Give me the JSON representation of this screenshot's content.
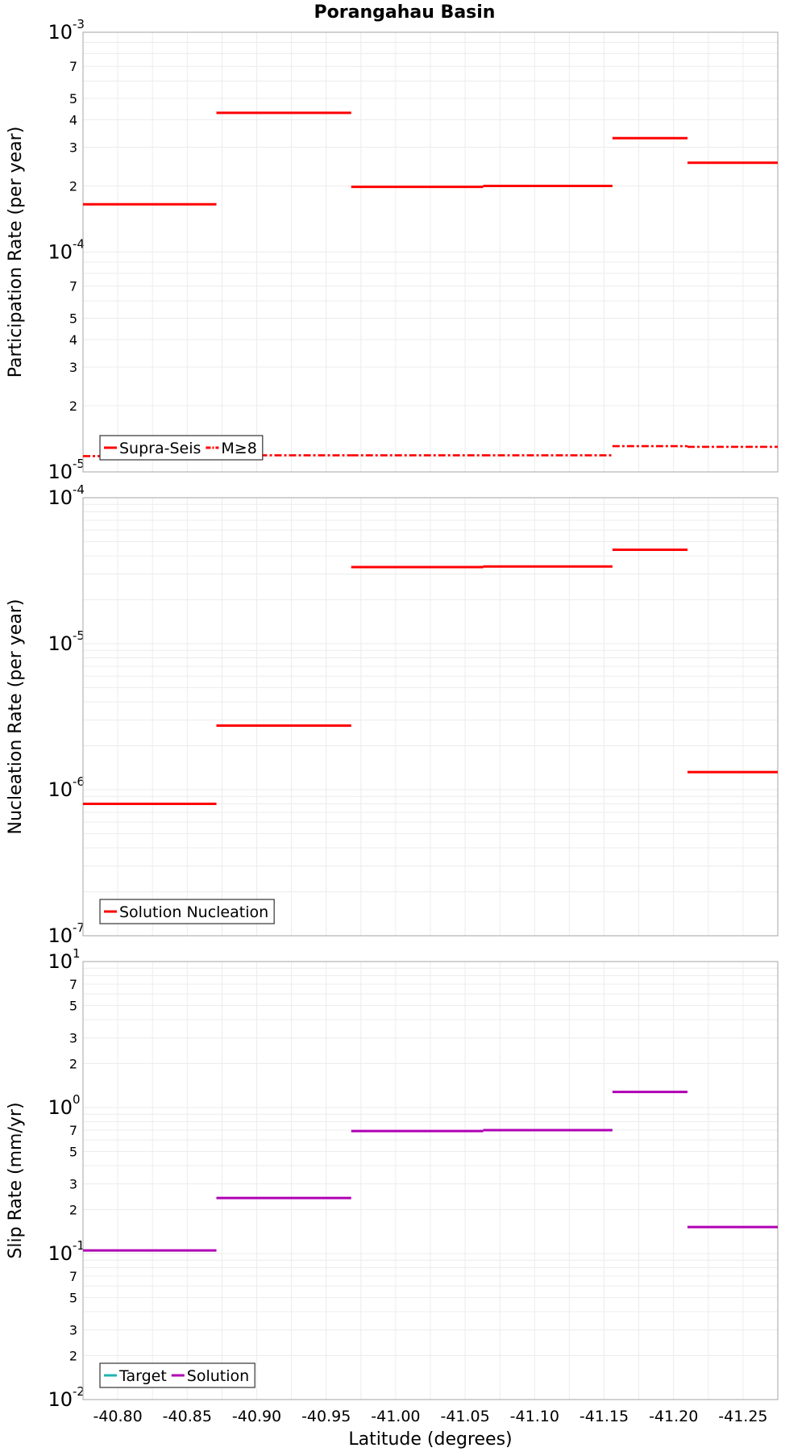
{
  "chart_data": [
    {
      "type": "line",
      "title": "Porangahau Basin",
      "xlabel": "",
      "ylabel": "Participation Rate (per year)",
      "yscale": "log",
      "ylim": [
        1e-05,
        0.001
      ],
      "xlim": [
        -40.775,
        -41.275
      ],
      "grid": true,
      "legend_position": "bottom-left",
      "series": [
        {
          "name": "Supra-Seis",
          "color": "#ff0000",
          "style": "solid",
          "segments": [
            {
              "x": [
                -40.775,
                -40.871
              ],
              "y": 0.000165
            },
            {
              "x": [
                -40.871,
                -40.968
              ],
              "y": 0.00043
            },
            {
              "x": [
                -40.968,
                -41.063
              ],
              "y": 0.000198
            },
            {
              "x": [
                -41.063,
                -41.156
              ],
              "y": 0.0002
            },
            {
              "x": [
                -41.156,
                -41.21
              ],
              "y": 0.00033
            },
            {
              "x": [
                -41.21,
                -41.275
              ],
              "y": 0.000255
            }
          ]
        },
        {
          "name": "M≥8",
          "color": "#ff0000",
          "style": "dashdot",
          "segments": [
            {
              "x": [
                -40.775,
                -40.871
              ],
              "y": 1.18e-05
            },
            {
              "x": [
                -40.871,
                -40.968
              ],
              "y": 1.19e-05
            },
            {
              "x": [
                -40.968,
                -41.063
              ],
              "y": 1.19e-05
            },
            {
              "x": [
                -41.063,
                -41.156
              ],
              "y": 1.19e-05
            },
            {
              "x": [
                -41.156,
                -41.21
              ],
              "y": 1.31e-05
            },
            {
              "x": [
                -41.21,
                -41.275
              ],
              "y": 1.3e-05
            }
          ]
        }
      ]
    },
    {
      "type": "line",
      "xlabel": "",
      "ylabel": "Nucleation Rate (per year)",
      "yscale": "log",
      "ylim": [
        1e-07,
        0.0001
      ],
      "xlim": [
        -40.775,
        -41.275
      ],
      "grid": true,
      "legend_position": "bottom-left",
      "series": [
        {
          "name": "Solution Nucleation",
          "color": "#ff0000",
          "style": "solid",
          "segments": [
            {
              "x": [
                -40.775,
                -40.871
              ],
              "y": 8e-07
            },
            {
              "x": [
                -40.871,
                -40.968
              ],
              "y": 2.75e-06
            },
            {
              "x": [
                -40.968,
                -41.063
              ],
              "y": 3.35e-05
            },
            {
              "x": [
                -41.063,
                -41.156
              ],
              "y": 3.38e-05
            },
            {
              "x": [
                -41.156,
                -41.21
              ],
              "y": 4.4e-05
            },
            {
              "x": [
                -41.21,
                -41.275
              ],
              "y": 1.32e-06
            }
          ]
        }
      ]
    },
    {
      "type": "line",
      "xlabel": "Latitude (degrees)",
      "ylabel": "Slip Rate (mm/yr)",
      "yscale": "log",
      "ylim": [
        0.01,
        10
      ],
      "xlim": [
        -40.775,
        -41.275
      ],
      "xticks": [
        "-40.80",
        "-40.85",
        "-40.90",
        "-40.95",
        "-41.00",
        "-41.05",
        "-41.10",
        "-41.15",
        "-41.20",
        "-41.25"
      ],
      "grid": true,
      "legend_position": "bottom-left",
      "series": [
        {
          "name": "Target",
          "color": "#1fb4b4",
          "style": "solid",
          "segments": []
        },
        {
          "name": "Solution",
          "color": "#b000b4",
          "style": "solid",
          "segments": [
            {
              "x": [
                -40.775,
                -40.871
              ],
              "y": 0.105
            },
            {
              "x": [
                -40.871,
                -40.968
              ],
              "y": 0.24
            },
            {
              "x": [
                -40.968,
                -41.063
              ],
              "y": 0.69
            },
            {
              "x": [
                -41.063,
                -41.156
              ],
              "y": 0.7
            },
            {
              "x": [
                -41.156,
                -41.21
              ],
              "y": 1.28
            },
            {
              "x": [
                -41.21,
                -41.275
              ],
              "y": 0.152
            }
          ]
        }
      ]
    }
  ]
}
